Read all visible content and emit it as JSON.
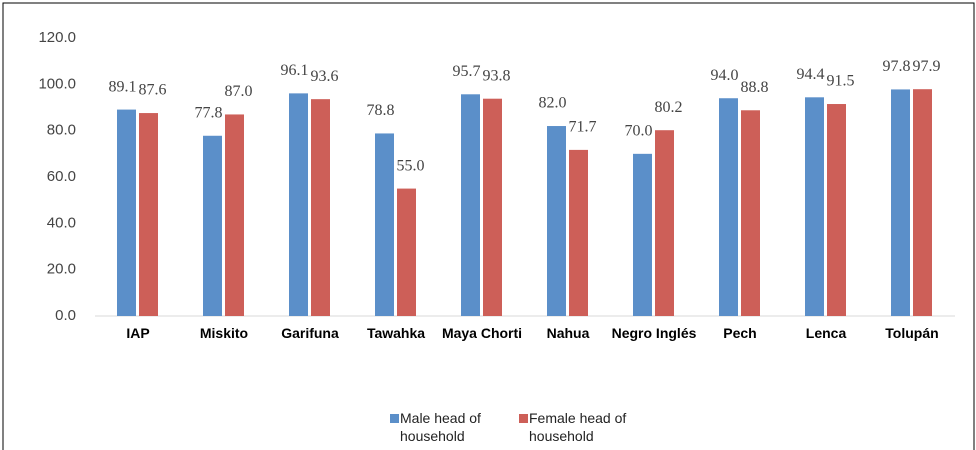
{
  "chart_data": {
    "type": "bar",
    "categories": [
      "IAP",
      "Miskito",
      "Garifuna",
      "Tawahka",
      "Maya Chorti",
      "Nahua",
      "Negro Inglés",
      "Pech",
      "Lenca",
      "Tolupán"
    ],
    "series": [
      {
        "name": "Male head of household",
        "color": "#5b8fc9",
        "values": [
          89.1,
          77.8,
          96.1,
          78.8,
          95.7,
          82.0,
          70.0,
          94.0,
          94.4,
          97.8
        ],
        "value_labels": [
          "89.1",
          "77.8",
          "96.1",
          "78.8",
          "95.7",
          "82.0",
          "70.0",
          "94.0",
          "94.4",
          "97.8"
        ]
      },
      {
        "name": "Female head of household",
        "color": "#cd5f58",
        "values": [
          87.6,
          87.0,
          93.6,
          55.0,
          93.8,
          71.7,
          80.2,
          88.8,
          91.5,
          97.9
        ],
        "value_labels": [
          "87.6",
          "87.0",
          "93.6",
          "55.0",
          "93.8",
          "71.7",
          "80.2",
          "88.8",
          "91.5",
          "97.9"
        ]
      }
    ],
    "ylim": [
      0,
      120
    ],
    "yticks": [
      {
        "value": 0,
        "label": "0.0"
      },
      {
        "value": 20,
        "label": "20.0"
      },
      {
        "value": 40,
        "label": "40.0"
      },
      {
        "value": 60,
        "label": "60.0"
      },
      {
        "value": 80,
        "label": "80.0"
      },
      {
        "value": 100,
        "label": "100.0"
      },
      {
        "value": 120,
        "label": "120.0"
      }
    ],
    "grid": false
  }
}
